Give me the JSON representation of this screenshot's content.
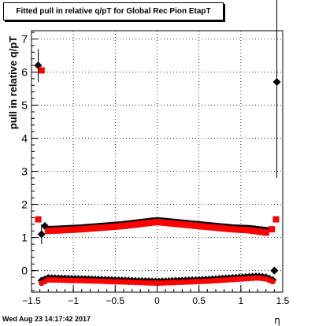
{
  "chart_data": {
    "type": "scatter",
    "title": "Fitted pull in relative q/pT for Global Rec Pion EtapT",
    "xlabel": "η",
    "ylabel": "pull in relative q/pT",
    "xlim": [
      -1.5,
      1.5
    ],
    "ylim": [
      -0.65,
      7.25
    ],
    "x_ticks": [
      -1.5,
      -1,
      -0.5,
      0,
      0.5,
      1,
      1.5
    ],
    "x_tick_labels": [
      "−1.5",
      "−1",
      "−0.5",
      "0",
      "0.5",
      "1",
      "1.5"
    ],
    "y_ticks": [
      0,
      1,
      2,
      3,
      4,
      5,
      6,
      7
    ],
    "y_tick_labels": [
      "0",
      "1",
      "2",
      "3",
      "4",
      "5",
      "6",
      "7"
    ],
    "grid": true,
    "series": [
      {
        "color": "#000000",
        "markers": [
          "square",
          "diamond"
        ],
        "upper_points": [
          {
            "x": -1.42,
            "y": 6.2,
            "err": 0.5
          },
          {
            "x": -1.38,
            "y": 1.1,
            "err": 0.3
          },
          {
            "x": -1.34,
            "y": 1.35
          },
          {
            "x": 1.4,
            "y": 0.0
          },
          {
            "x": 1.43,
            "y": 5.7,
            "err": 2.9
          }
        ],
        "mean_band": {
          "x_from": -1.3,
          "x_to": 1.3,
          "step": 0.04,
          "knots_x": [
            -1.3,
            -0.9,
            -0.4,
            0.0,
            0.4,
            0.9,
            1.1,
            1.3
          ],
          "knots_y": [
            1.25,
            1.3,
            1.4,
            1.52,
            1.42,
            1.3,
            1.28,
            1.22
          ]
        },
        "low_band": {
          "x_from": -1.38,
          "x_to": 1.38,
          "step": 0.04,
          "knots_x": [
            -1.38,
            -1.3,
            -0.8,
            0.0,
            0.6,
            1.2,
            1.3,
            1.38
          ],
          "knots_y": [
            -0.3,
            -0.22,
            -0.26,
            -0.33,
            -0.27,
            -0.17,
            -0.2,
            -0.28
          ]
        }
      },
      {
        "color": "#ff0000",
        "markers": [
          "square",
          "circle"
        ],
        "upper_points": [
          {
            "x": -1.42,
            "y": 1.55
          },
          {
            "x": -1.38,
            "y": 6.05
          },
          {
            "x": 1.37,
            "y": 1.25
          },
          {
            "x": 1.42,
            "y": 1.55
          }
        ],
        "mean_band": {
          "x_from": -1.3,
          "x_to": 1.3,
          "step": 0.04,
          "knots_x": [
            -1.3,
            -0.9,
            -0.4,
            0.0,
            0.4,
            0.9,
            1.1,
            1.3
          ],
          "knots_y": [
            1.2,
            1.25,
            1.35,
            1.47,
            1.37,
            1.25,
            1.22,
            1.15
          ]
        },
        "low_band": {
          "x_from": -1.38,
          "x_to": 1.38,
          "step": 0.04,
          "knots_x": [
            -1.38,
            -1.3,
            -0.8,
            0.0,
            0.6,
            1.2,
            1.3,
            1.38
          ],
          "knots_y": [
            -0.38,
            -0.28,
            -0.31,
            -0.38,
            -0.32,
            -0.22,
            -0.25,
            -0.33
          ]
        }
      }
    ]
  },
  "footer": {
    "date": "Wed Aug 23 14:17:42 2017"
  }
}
